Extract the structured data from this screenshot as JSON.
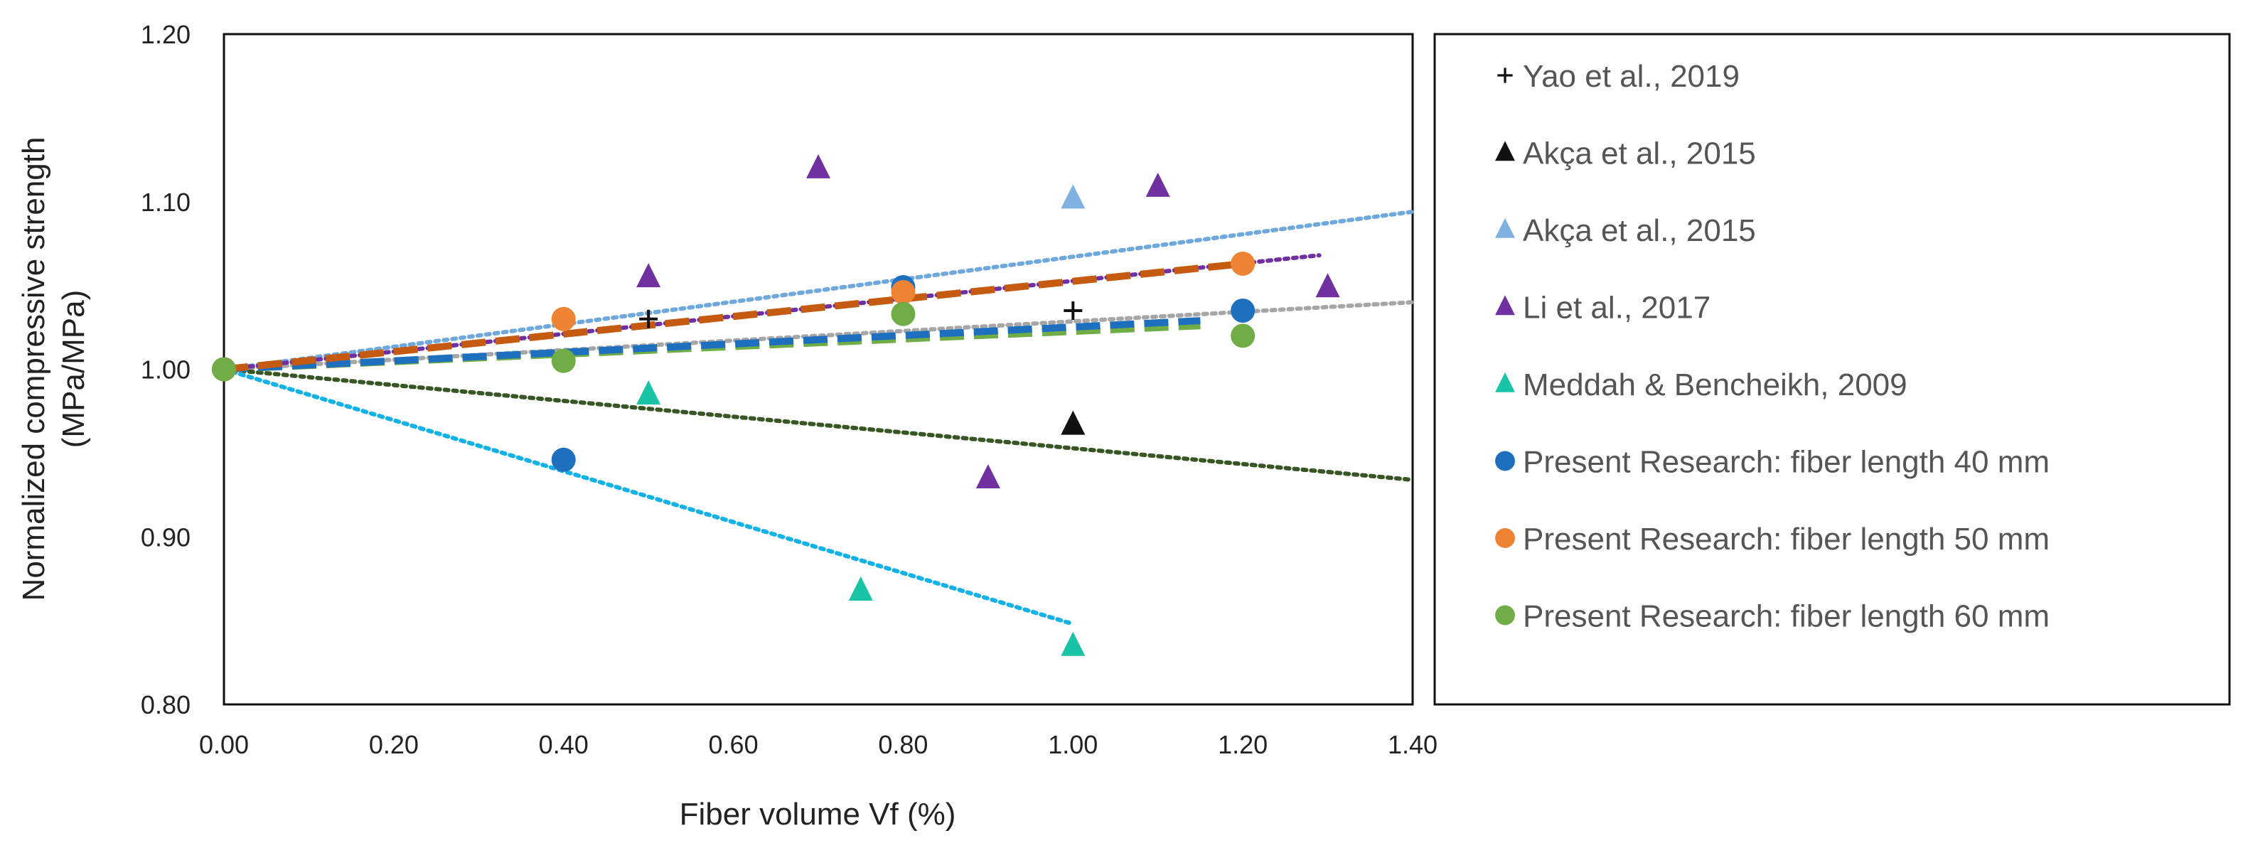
{
  "chart_data": {
    "type": "scatter",
    "ylabel_line1": "Normalized compressive strength",
    "ylabel_line2": "(MPa/MPa)",
    "xlabel": "Fiber volume Vf (%)",
    "xlim": [
      0,
      1.4
    ],
    "ylim": [
      0.8,
      1.2
    ],
    "xticks": [
      "0.00",
      "0.20",
      "0.40",
      "0.60",
      "0.80",
      "1.00",
      "1.20",
      "1.40"
    ],
    "yticks": [
      "0.80",
      "0.90",
      "1.00",
      "1.10",
      "1.20"
    ],
    "xtick_values": [
      0,
      0.2,
      0.4,
      0.6,
      0.8,
      1.0,
      1.2,
      1.4
    ],
    "ytick_values": [
      0.8,
      0.9,
      1.0,
      1.1,
      1.2
    ],
    "legend_position": "right",
    "series": [
      {
        "name": "Yao et al., 2019",
        "marker": "plus",
        "color": "#111111",
        "x": [
          0,
          0.5,
          1.0
        ],
        "y": [
          1.0,
          1.03,
          1.035
        ]
      },
      {
        "name": "Akça et al., 2015",
        "marker": "triangle",
        "color": "#111111",
        "x": [
          1.0
        ],
        "y": [
          0.967
        ]
      },
      {
        "name": "Akça et al., 2015",
        "marker": "triangle",
        "color": "#7fb2e0",
        "x": [
          1.0
        ],
        "y": [
          1.102
        ]
      },
      {
        "name": "Li et al., 2017",
        "marker": "triangle",
        "color": "#7030a0",
        "x": [
          0.5,
          0.7,
          0.9,
          1.1,
          1.3
        ],
        "y": [
          1.055,
          1.12,
          0.935,
          1.109,
          1.049
        ]
      },
      {
        "name": "Meddah & Bencheikh, 2009",
        "marker": "triangle",
        "color": "#19c3a5",
        "x": [
          0.5,
          0.75,
          1.0
        ],
        "y": [
          0.985,
          0.868,
          0.835
        ]
      },
      {
        "name": "Present Research: fiber length 40 mm",
        "marker": "circle",
        "color": "#1f6fbf",
        "x": [
          0,
          0.4,
          0.8,
          1.2
        ],
        "y": [
          1.0,
          0.946,
          1.049,
          1.035
        ]
      },
      {
        "name": "Present Research: fiber length 50 mm",
        "marker": "circle",
        "color": "#ee8433",
        "x": [
          0,
          0.4,
          0.8,
          1.2
        ],
        "y": [
          1.0,
          1.03,
          1.046,
          1.063
        ]
      },
      {
        "name": "Present Research: fiber length 60 mm",
        "marker": "circle",
        "color": "#70ad47",
        "x": [
          0,
          0.4,
          0.8,
          1.2
        ],
        "y": [
          1.0,
          1.005,
          1.033,
          1.02
        ]
      }
    ],
    "trendlines": [
      {
        "name": "trend-yao",
        "color": "#a6a6a6",
        "style": "dotted",
        "x": [
          0,
          1.4
        ],
        "y": [
          1.0,
          1.04
        ]
      },
      {
        "name": "trend-akca-black",
        "color": "#375623",
        "style": "dotted",
        "x": [
          0,
          1.4
        ],
        "y": [
          1.0,
          0.934
        ]
      },
      {
        "name": "trend-akca-blue",
        "color": "#6fa8dc",
        "style": "dotted",
        "x": [
          0,
          1.4
        ],
        "y": [
          1.0,
          1.094
        ]
      },
      {
        "name": "trend-li",
        "color": "#7030a0",
        "style": "dotted",
        "x": [
          0,
          1.29
        ],
        "y": [
          1.0,
          1.068
        ]
      },
      {
        "name": "trend-meddah",
        "color": "#12b2e8",
        "style": "dotted",
        "x": [
          0,
          1.0
        ],
        "y": [
          1.0,
          0.848
        ]
      },
      {
        "name": "trend-60mm",
        "color": "#70ad47",
        "style": "dashed",
        "x": [
          0,
          1.15
        ],
        "y": [
          1.0,
          1.026
        ]
      },
      {
        "name": "trend-40mm",
        "color": "#1f6fbf",
        "style": "dashed",
        "x": [
          0,
          1.15
        ],
        "y": [
          1.0,
          1.029
        ]
      },
      {
        "name": "trend-50mm",
        "color": "#c55a11",
        "style": "dashed",
        "x": [
          0,
          1.2
        ],
        "y": [
          1.0,
          1.063
        ]
      }
    ]
  }
}
